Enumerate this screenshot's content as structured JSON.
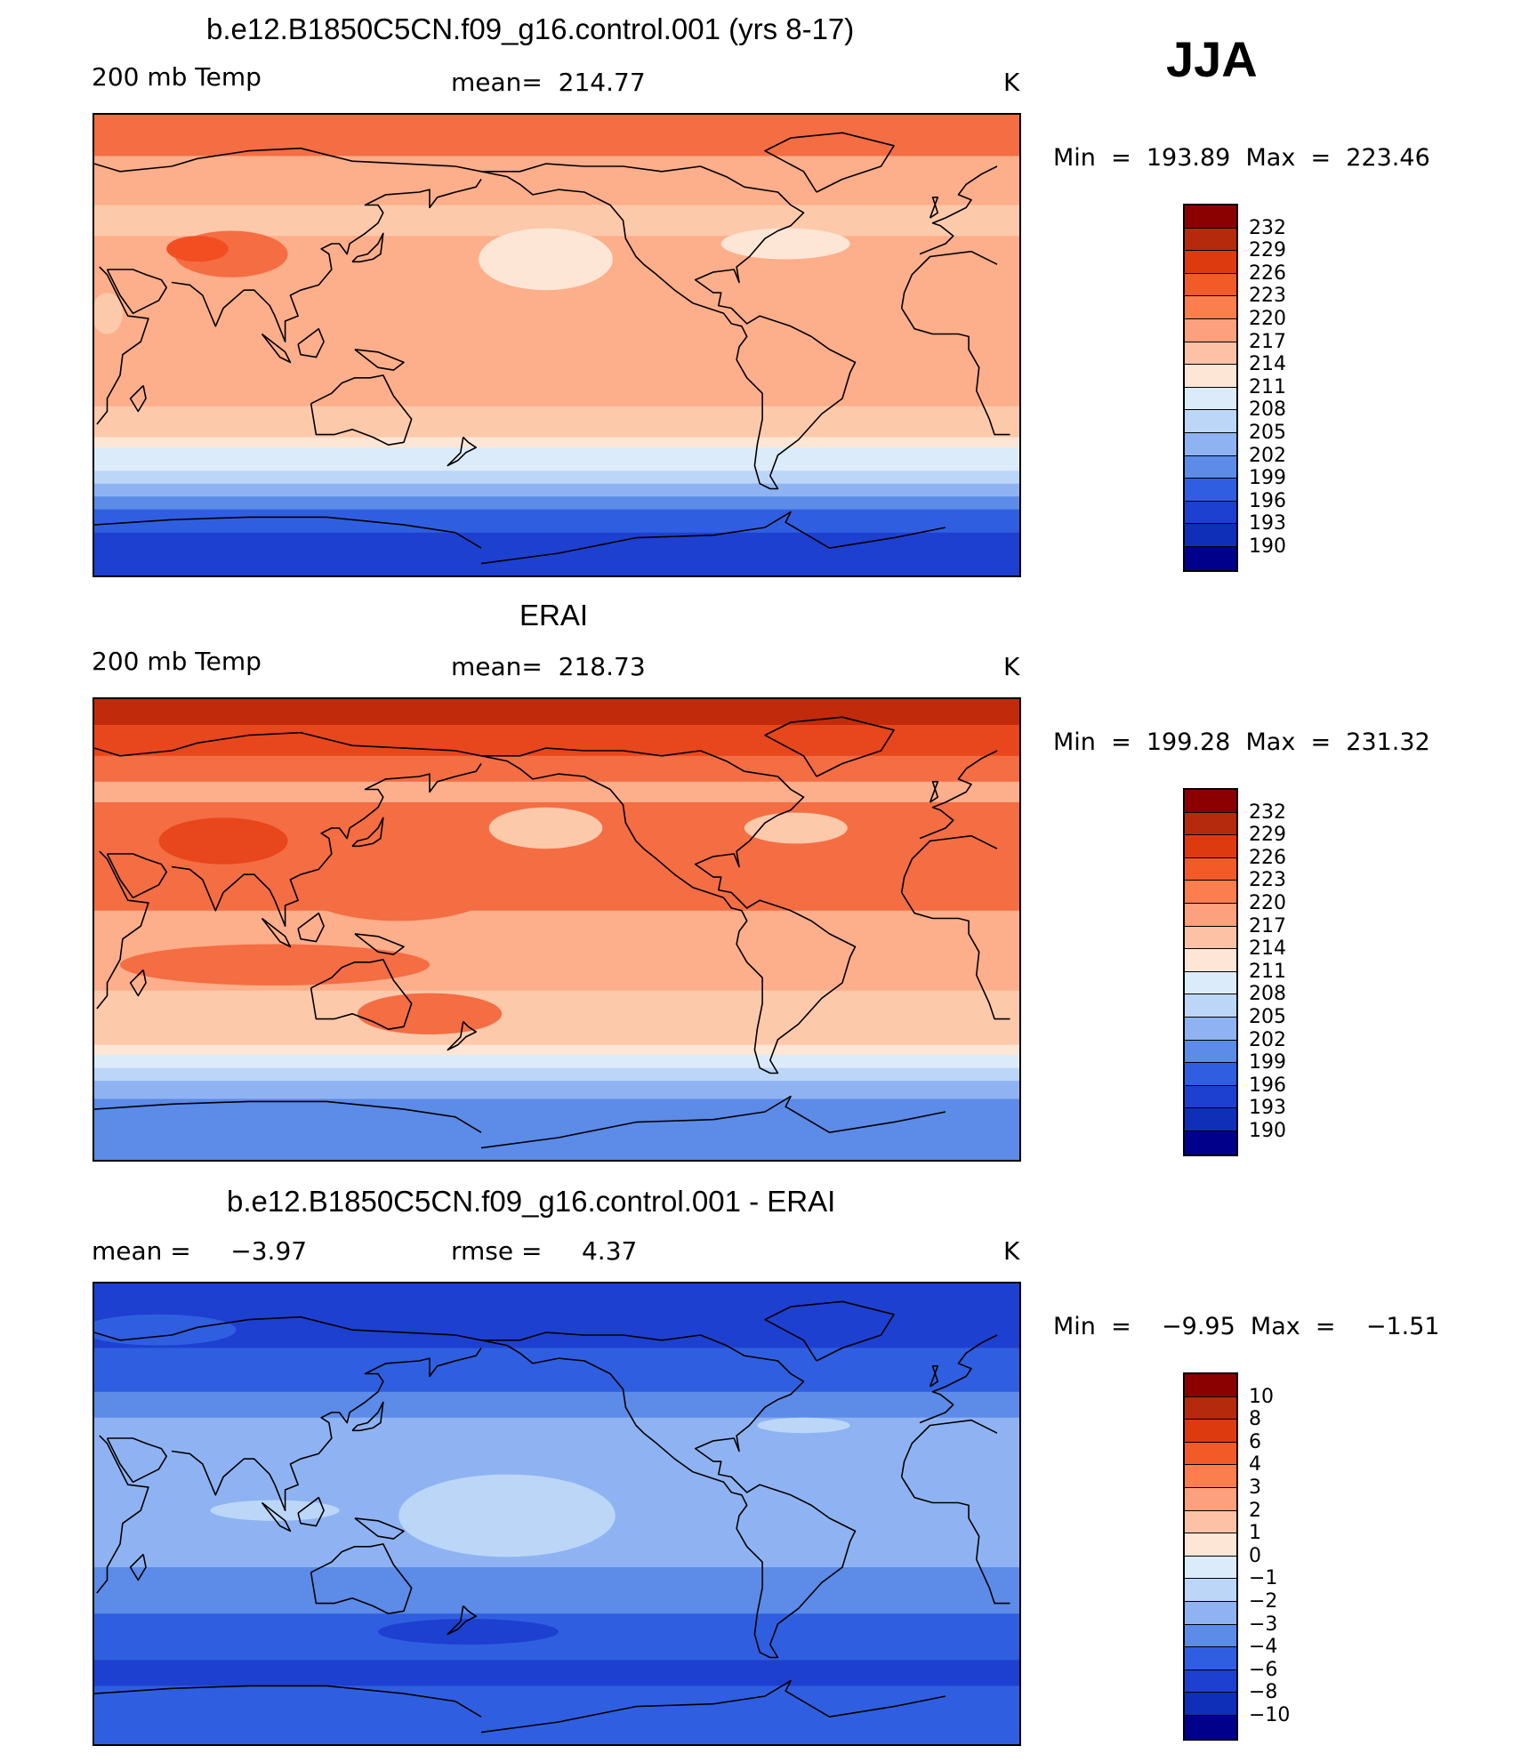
{
  "season": "JJA",
  "units_label": "K",
  "panels": [
    {
      "title": "b.e12.B1850C5CN.f09_g16.control.001 (yrs 8-17)",
      "left_label": "200 mb Temp",
      "center_label": "mean=  214.77",
      "right_label": "K",
      "minmax": "Min  =  193.89  Max  =  223.46",
      "colorbar_labels": [
        "232",
        "229",
        "226",
        "223",
        "220",
        "217",
        "214",
        "211",
        "208",
        "205",
        "202",
        "199",
        "196",
        "193",
        "190"
      ],
      "bands": [
        {
          "lat": 90,
          "color": "#F46D43"
        },
        {
          "lat": 74,
          "color": "#FDAE8A"
        },
        {
          "lat": 55,
          "color": "#FDC9AB"
        },
        {
          "lat": 43,
          "color": "#FDAE8A"
        },
        {
          "lat": -23,
          "color": "#FDC9AB"
        },
        {
          "lat": -35,
          "color": "#FDE6D5"
        },
        {
          "lat": -39,
          "color": "#DCEBFA"
        },
        {
          "lat": -48,
          "color": "#BCD6F8"
        },
        {
          "lat": -53,
          "color": "#8FB3F2"
        },
        {
          "lat": -58,
          "color": "#5C8BE8"
        },
        {
          "lat": -63,
          "color": "#2F5FE0"
        },
        {
          "lat": -72,
          "color": "#1E40D0"
        }
      ],
      "blobs": [
        {
          "lon": 83,
          "lat": 36,
          "rx": 22,
          "ry": 9,
          "color": "#F46D43"
        },
        {
          "lon": 70,
          "lat": 38,
          "rx": 12,
          "ry": 5,
          "color": "#F24E21"
        },
        {
          "lon": -155,
          "lat": 34,
          "rx": 26,
          "ry": 12,
          "color": "#FDE6D5"
        },
        {
          "lon": -62,
          "lat": 40,
          "rx": 25,
          "ry": 6,
          "color": "#FDE6D5"
        },
        {
          "lon": 35,
          "lat": 13,
          "rx": 6,
          "ry": 8,
          "color": "#FDC9AB"
        }
      ]
    },
    {
      "title": "ERAI",
      "left_label": "200 mb Temp",
      "center_label": "mean=  218.73",
      "right_label": "K",
      "minmax": "Min  =  199.28  Max  =  231.32",
      "colorbar_labels": [
        "232",
        "229",
        "226",
        "223",
        "220",
        "217",
        "214",
        "211",
        "208",
        "205",
        "202",
        "199",
        "196",
        "193",
        "190"
      ],
      "bands": [
        {
          "lat": 90,
          "color": "#C22A0C"
        },
        {
          "lat": 80,
          "color": "#E8461C"
        },
        {
          "lat": 68,
          "color": "#F46D43"
        },
        {
          "lat": 58,
          "color": "#FDAE8A"
        },
        {
          "lat": 50,
          "color": "#F46D43"
        },
        {
          "lat": 8,
          "color": "#FDAE8A"
        },
        {
          "lat": -23,
          "color": "#FDC9AB"
        },
        {
          "lat": -44,
          "color": "#FDE6D5"
        },
        {
          "lat": -48,
          "color": "#DCEBFA"
        },
        {
          "lat": -53,
          "color": "#BCD6F8"
        },
        {
          "lat": -58,
          "color": "#8FB3F2"
        },
        {
          "lat": -65,
          "color": "#5C8BE8"
        }
      ],
      "blobs": [
        {
          "lon": 80,
          "lat": 35,
          "rx": 25,
          "ry": 9,
          "color": "#E8461C"
        },
        {
          "lon": 148,
          "lat": 18,
          "rx": 40,
          "ry": 14,
          "color": "#F46D43"
        },
        {
          "lon": -155,
          "lat": 40,
          "rx": 22,
          "ry": 8,
          "color": "#FDC9AB"
        },
        {
          "lon": -58,
          "lat": 40,
          "rx": 20,
          "ry": 6,
          "color": "#FDC9AB"
        },
        {
          "lon": 100,
          "lat": -13,
          "rx": 60,
          "ry": 8,
          "color": "#F46D43"
        },
        {
          "lon": 160,
          "lat": -32,
          "rx": 28,
          "ry": 8,
          "color": "#F46D43"
        }
      ]
    },
    {
      "title": "b.e12.B1850C5CN.f09_g16.control.001 - ERAI",
      "left_label": "mean =     −3.97",
      "center_label": "rmse =     4.37",
      "right_label": "K",
      "minmax": "Min  =    −9.95  Max  =    −1.51",
      "colorbar_labels": [
        "10",
        "8",
        "6",
        "4",
        "3",
        "2",
        "1",
        "0",
        "−1",
        "−2",
        "−3",
        "−4",
        "−6",
        "−8",
        "−10"
      ],
      "bands": [
        {
          "lat": 90,
          "color": "#1E40D0"
        },
        {
          "lat": 65,
          "color": "#2F5FE0"
        },
        {
          "lat": 48,
          "color": "#5C8BE8"
        },
        {
          "lat": 38,
          "color": "#8FB3F2"
        },
        {
          "lat": -20,
          "color": "#5C8BE8"
        },
        {
          "lat": -38,
          "color": "#2F5FE0"
        },
        {
          "lat": -56,
          "color": "#1E40D0"
        },
        {
          "lat": -66,
          "color": "#2F5FE0"
        }
      ],
      "blobs": [
        {
          "lon": -170,
          "lat": 0,
          "rx": 42,
          "ry": 16,
          "color": "#BCD6F8"
        },
        {
          "lon": 100,
          "lat": 2,
          "rx": 25,
          "ry": 4,
          "color": "#BCD6F8"
        },
        {
          "lon": -55,
          "lat": 35,
          "rx": 18,
          "ry": 3,
          "color": "#BCD6F8"
        },
        {
          "lon": 175,
          "lat": -45,
          "rx": 35,
          "ry": 5,
          "color": "#1E40D0"
        },
        {
          "lon": 55,
          "lat": 72,
          "rx": 30,
          "ry": 6,
          "color": "#2F5FE0"
        }
      ]
    }
  ],
  "colorbar_colors": [
    "#8B0000",
    "#B52A0C",
    "#DD3A10",
    "#F25A28",
    "#FA7E4E",
    "#FCA07D",
    "#FDC2A5",
    "#FDE6D5",
    "#DCEBFA",
    "#BCD6F8",
    "#8FB3F2",
    "#5C8BE8",
    "#2F5FE0",
    "#1E40D0",
    "#102FB8",
    "#00008B"
  ]
}
